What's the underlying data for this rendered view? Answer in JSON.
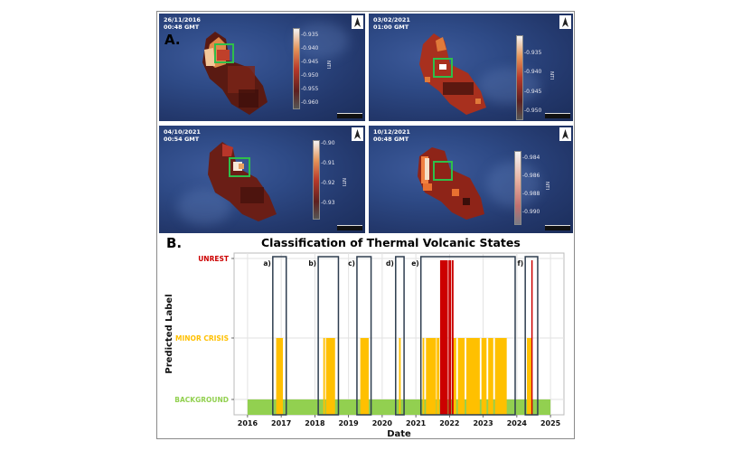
{
  "figure": {
    "section_a_label": "A.",
    "section_b_label": "B.",
    "panels": [
      {
        "date": "26/11/2016",
        "time": "00:48 GMT",
        "colorbar_label": "NTI",
        "colorbar_ticks": [
          "-0.935",
          "-0.940",
          "-0.945",
          "-0.950",
          "-0.955",
          "-0.960"
        ]
      },
      {
        "date": "03/02/2021",
        "time": "01:00 GMT",
        "colorbar_label": "NTI",
        "colorbar_ticks": [
          "-0.935",
          "-0.940",
          "-0.945",
          "-0.950"
        ]
      },
      {
        "date": "04/10/2021",
        "time": "00:54 GMT",
        "colorbar_label": "NTI",
        "colorbar_ticks": [
          "-0.90",
          "-0.91",
          "-0.92",
          "-0.93"
        ]
      },
      {
        "date": "10/12/2021",
        "time": "00:48 GMT",
        "colorbar_label": "NTI",
        "colorbar_ticks": [
          "-0.984",
          "-0.986",
          "-0.988",
          "-0.990"
        ]
      }
    ],
    "colors": {
      "unrest": "#cc0000",
      "minor_crisis": "#ffc000",
      "background": "#92d050",
      "window_box": "#2e3d4f",
      "highlight_box": "#2fbf4a"
    }
  },
  "chart_data": {
    "type": "bar",
    "title": "Classification of Thermal Volcanic States",
    "xlabel": "Date",
    "ylabel": "Predicted Label",
    "xlim": [
      2015.6,
      2025.4
    ],
    "x_ticks": [
      "2016",
      "2017",
      "2018",
      "2019",
      "2020",
      "2021",
      "2022",
      "2023",
      "2024",
      "2025"
    ],
    "y_categories": [
      {
        "label": "BACKGROUND",
        "level": 0,
        "color": "#92d050"
      },
      {
        "label": "MINOR CRISIS",
        "level": 1,
        "color": "#ffc000"
      },
      {
        "label": "UNREST",
        "level": 2,
        "color": "#cc0000"
      }
    ],
    "grid": true,
    "background_span": {
      "start": 2016.0,
      "end": 2025.0,
      "level": 0
    },
    "minor_crisis_spans": [
      {
        "start": 2016.85,
        "end": 2017.05
      },
      {
        "start": 2018.25,
        "end": 2018.3
      },
      {
        "start": 2018.33,
        "end": 2018.6
      },
      {
        "start": 2019.35,
        "end": 2019.6
      },
      {
        "start": 2020.5,
        "end": 2020.55
      },
      {
        "start": 2021.2,
        "end": 2021.25
      },
      {
        "start": 2021.3,
        "end": 2021.6
      },
      {
        "start": 2021.62,
        "end": 2021.7
      },
      {
        "start": 2022.1,
        "end": 2022.2
      },
      {
        "start": 2022.25,
        "end": 2022.45
      },
      {
        "start": 2022.5,
        "end": 2022.9
      },
      {
        "start": 2022.95,
        "end": 2023.1
      },
      {
        "start": 2023.15,
        "end": 2023.3
      },
      {
        "start": 2023.35,
        "end": 2023.7
      },
      {
        "start": 2024.3,
        "end": 2024.45
      }
    ],
    "unrest_spans": [
      {
        "start": 2021.72,
        "end": 2021.95
      },
      {
        "start": 2021.97,
        "end": 2022.05
      },
      {
        "start": 2022.07,
        "end": 2022.12
      },
      {
        "start": 2024.43,
        "end": 2024.47
      }
    ],
    "windows": [
      {
        "label": "a)",
        "start": 2016.75,
        "end": 2017.15
      },
      {
        "label": "b)",
        "start": 2018.1,
        "end": 2018.7
      },
      {
        "label": "c)",
        "start": 2019.25,
        "end": 2019.67
      },
      {
        "label": "d)",
        "start": 2020.4,
        "end": 2020.65
      },
      {
        "label": "e)",
        "start": 2021.15,
        "end": 2023.95
      },
      {
        "label": "f)",
        "start": 2024.25,
        "end": 2024.62
      }
    ]
  }
}
